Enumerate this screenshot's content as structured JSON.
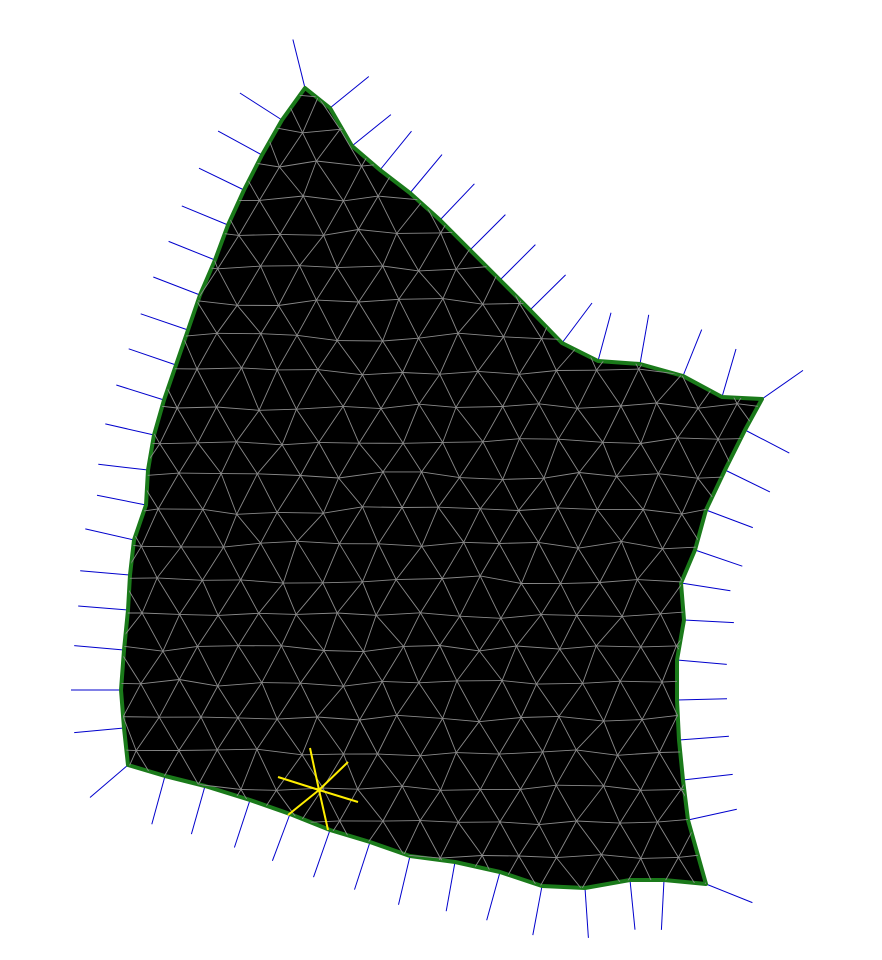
{
  "diagram": {
    "kind": "triangular-mesh",
    "colors": {
      "background": "#ffffff",
      "fill": "#000000",
      "boundary": "#1a7a1a",
      "mesh_edges": "#8a8a8a",
      "normals": "#0000cc",
      "marker": "#ffee00"
    },
    "marker_icon": "asterisk-marker-icon"
  }
}
